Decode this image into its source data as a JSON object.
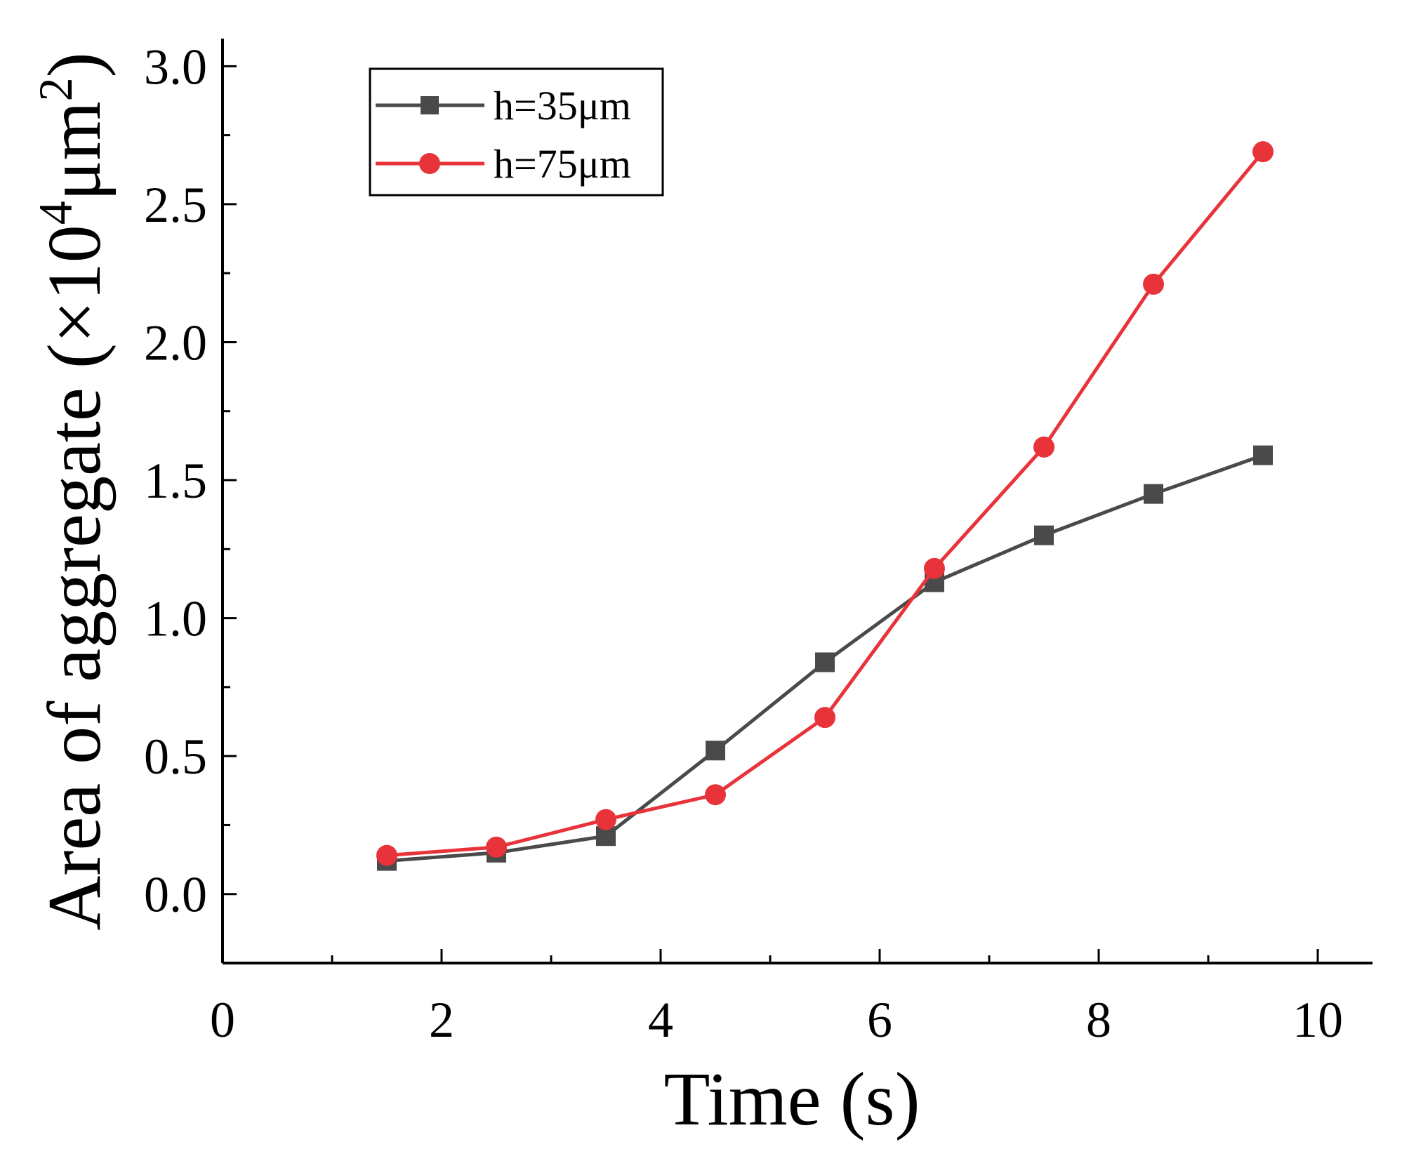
{
  "chart_data": {
    "type": "line",
    "title": "",
    "xlabel": "Time (s)",
    "ylabel": {
      "prefix": "Area of aggregate (×10",
      "exp1": "4",
      "unit": "μm",
      "exp2": "2",
      "suffix": ")"
    },
    "xlim": [
      0,
      10.5
    ],
    "ylim": [
      -0.25,
      3.1
    ],
    "x_ticks": [
      0,
      2,
      4,
      6,
      8,
      10
    ],
    "x_tick_labels": [
      "0",
      "2",
      "4",
      "6",
      "8",
      "10"
    ],
    "y_ticks": [
      0.0,
      0.5,
      1.0,
      1.5,
      2.0,
      2.5,
      3.0
    ],
    "y_tick_labels": [
      "0.0",
      "0.5",
      "1.0",
      "1.5",
      "2.0",
      "2.5",
      "3.0"
    ],
    "legend_position": "top-left",
    "x": [
      1.5,
      2.5,
      3.5,
      4.5,
      5.5,
      6.5,
      7.5,
      8.5,
      9.5
    ],
    "series": [
      {
        "name": "h=35μm",
        "color": "#4a4a4a",
        "marker": "square",
        "values": [
          0.12,
          0.15,
          0.21,
          0.52,
          0.84,
          1.13,
          1.3,
          1.45,
          1.59
        ]
      },
      {
        "name": "h=75μm",
        "color": "#e8333b",
        "marker": "circle",
        "values": [
          0.14,
          0.17,
          0.27,
          0.36,
          0.64,
          1.18,
          1.62,
          2.21,
          2.69
        ]
      }
    ]
  }
}
